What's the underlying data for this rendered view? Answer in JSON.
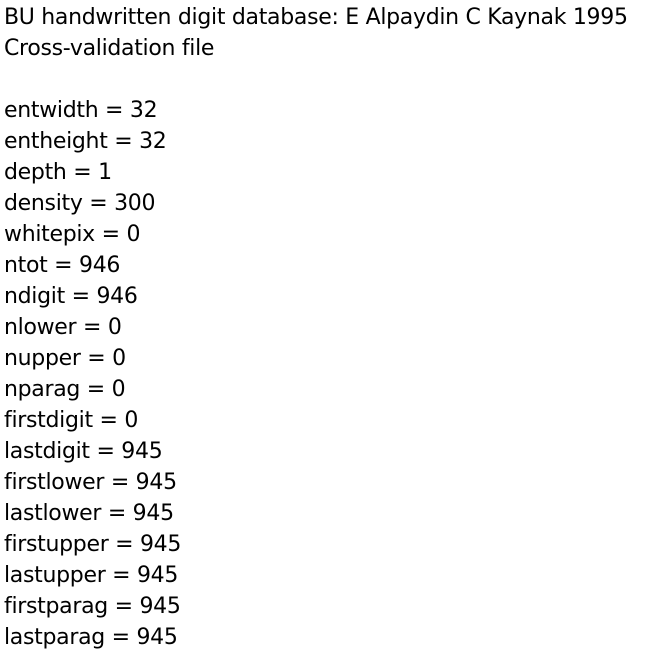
{
  "header": {
    "title": "BU handwritten digit database: E Alpaydin C Kaynak 1995",
    "subtitle": "Cross-validation file"
  },
  "fields": [
    {
      "key": "entwidth",
      "value": "32"
    },
    {
      "key": "entheight",
      "value": "32"
    },
    {
      "key": "depth",
      "value": "1"
    },
    {
      "key": "density",
      "value": "300"
    },
    {
      "key": "whitepix",
      "value": "0"
    },
    {
      "key": "ntot",
      "value": "946"
    },
    {
      "key": "ndigit",
      "value": "946"
    },
    {
      "key": "nlower",
      "value": "0"
    },
    {
      "key": "nupper",
      "value": "0"
    },
    {
      "key": "nparag",
      "value": "0"
    },
    {
      "key": "firstdigit",
      "value": "0"
    },
    {
      "key": "lastdigit",
      "value": "945"
    },
    {
      "key": "firstlower",
      "value": "945"
    },
    {
      "key": "lastlower",
      "value": "945"
    },
    {
      "key": "firstupper",
      "value": "945"
    },
    {
      "key": "lastupper",
      "value": "945"
    },
    {
      "key": "firstparag",
      "value": "945"
    },
    {
      "key": "lastparag",
      "value": "945"
    }
  ]
}
